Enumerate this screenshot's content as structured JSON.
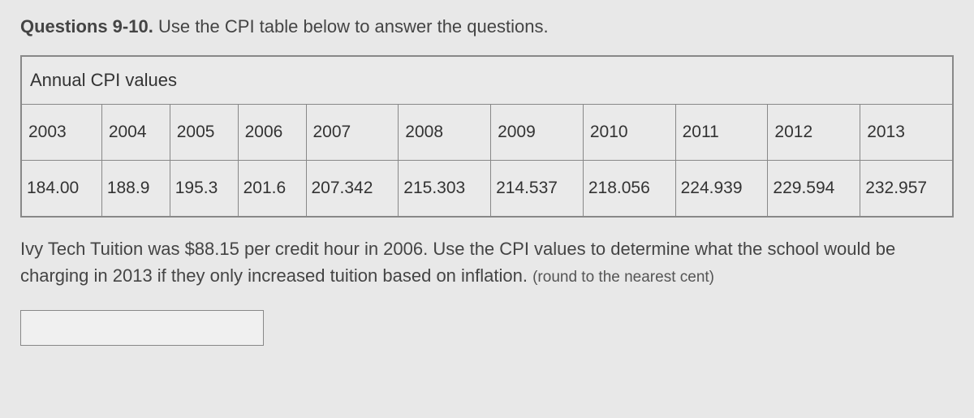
{
  "heading": {
    "prefix": "Questions 9-10.",
    "rest": " Use the CPI table below to answer the questions."
  },
  "table": {
    "title": "Annual CPI values",
    "years": [
      "2003",
      "2004",
      "2005",
      "2006",
      "2007",
      "2008",
      "2009",
      "2010",
      "2011",
      "2012",
      "2013"
    ],
    "values": [
      "184.00",
      "188.9",
      "195.3",
      "201.6",
      "207.342",
      "215.303",
      "214.537",
      "218.056",
      "224.939",
      "229.594",
      "232.957"
    ]
  },
  "question": {
    "main": "Ivy Tech Tuition was $88.15 per credit hour in 2006. Use the CPI values to determine what the school would be charging in 2013 if they only increased tuition based on inflation. ",
    "note": "(round to the nearest cent)"
  },
  "answer": {
    "value": ""
  },
  "style": {
    "background": "#e8e8e8",
    "border_color": "#888888",
    "text_color": "#333333"
  }
}
